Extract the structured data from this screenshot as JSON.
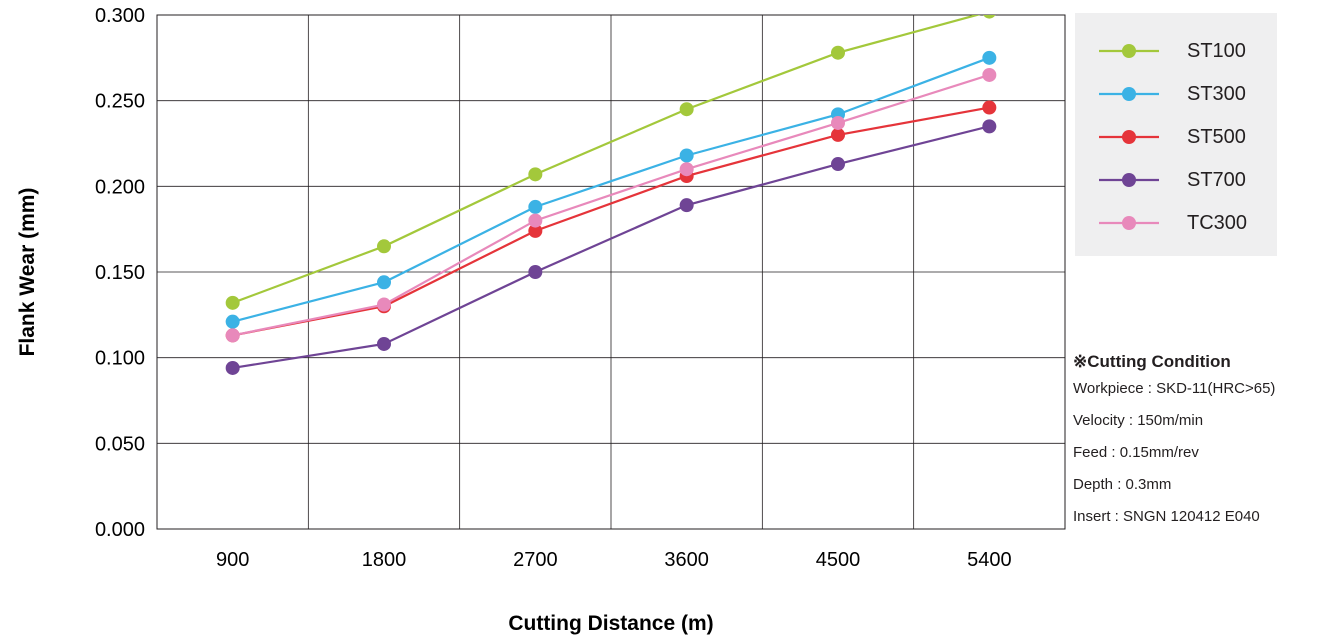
{
  "chart_data": {
    "type": "line",
    "xlabel": "Cutting Distance (m)",
    "ylabel": "Flank Wear (mm)",
    "categories": [
      "900",
      "1800",
      "2700",
      "3600",
      "4500",
      "5400"
    ],
    "ylim": [
      0,
      0.3
    ],
    "yticks": [
      "0.000",
      "0.050",
      "0.100",
      "0.150",
      "0.200",
      "0.250",
      "0.300"
    ],
    "ytick_values": [
      0,
      0.05,
      0.1,
      0.15,
      0.2,
      0.25,
      0.3
    ],
    "grid": true,
    "legend_position": "top-right",
    "series": [
      {
        "name": "ST100",
        "color": "#a3c83b",
        "values": [
          0.132,
          0.165,
          0.207,
          0.245,
          0.278,
          0.302
        ]
      },
      {
        "name": "ST300",
        "color": "#3bb2e5",
        "values": [
          0.121,
          0.144,
          0.188,
          0.218,
          0.242,
          0.275
        ]
      },
      {
        "name": "ST500",
        "color": "#e5343a",
        "values": [
          0.113,
          0.13,
          0.174,
          0.206,
          0.23,
          0.246
        ]
      },
      {
        "name": "ST700",
        "color": "#6f4495",
        "values": [
          0.094,
          0.108,
          0.15,
          0.189,
          0.213,
          0.235
        ]
      },
      {
        "name": "TC300",
        "color": "#e889bb",
        "values": [
          0.113,
          0.131,
          0.18,
          0.21,
          0.237,
          0.265
        ]
      }
    ]
  },
  "conditions": {
    "title": "※Cutting Condition",
    "lines": [
      "Workpiece : SKD-11(HRC>65)",
      "Velocity : 150m/min",
      "Feed : 0.15mm/rev",
      "Depth : 0.3mm",
      "Insert : SNGN 120412 E040"
    ]
  }
}
